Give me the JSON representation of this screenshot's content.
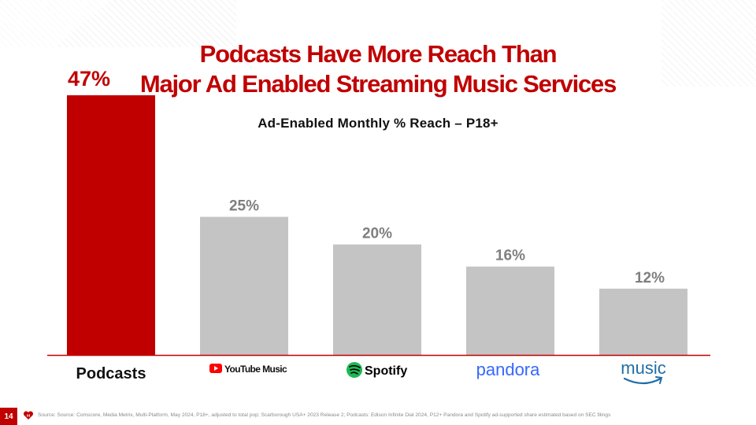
{
  "title_line1": "Podcasts Have More Reach Than",
  "title_line2": "Major Ad Enabled Streaming Music Services",
  "page_number": "14",
  "source": "Source: Source: Comscore, Media Metrix, Multi-Platform, May 2024, P18+, adjusted to total pop; Scarborough USA+ 2023 Release 2; Podcasts: Edison Infinite Dial 2024, P12+ Pandora and Spotify ad-supported share estimated based on SEC filings",
  "colors": {
    "accent": "#c00000",
    "bar_other": "#c4c4c4",
    "label_other": "#7f7f7f",
    "axis": "#c00000"
  },
  "chart_data": {
    "type": "bar",
    "title": "Ad-Enabled Monthly % Reach – P18+",
    "xlabel": "",
    "ylabel": "",
    "ylim": [
      0,
      50
    ],
    "categories": [
      "Podcasts",
      "YouTube Music",
      "Spotify",
      "pandora",
      "music"
    ],
    "values": [
      47,
      25,
      20,
      16,
      12
    ],
    "data_labels": [
      "47%",
      "25%",
      "20%",
      "16%",
      "12%"
    ],
    "highlight_index": 0,
    "category_logos": [
      null,
      "youtube-music-logo",
      "spotify-logo",
      "pandora-logo",
      "amazon-music-logo"
    ]
  }
}
